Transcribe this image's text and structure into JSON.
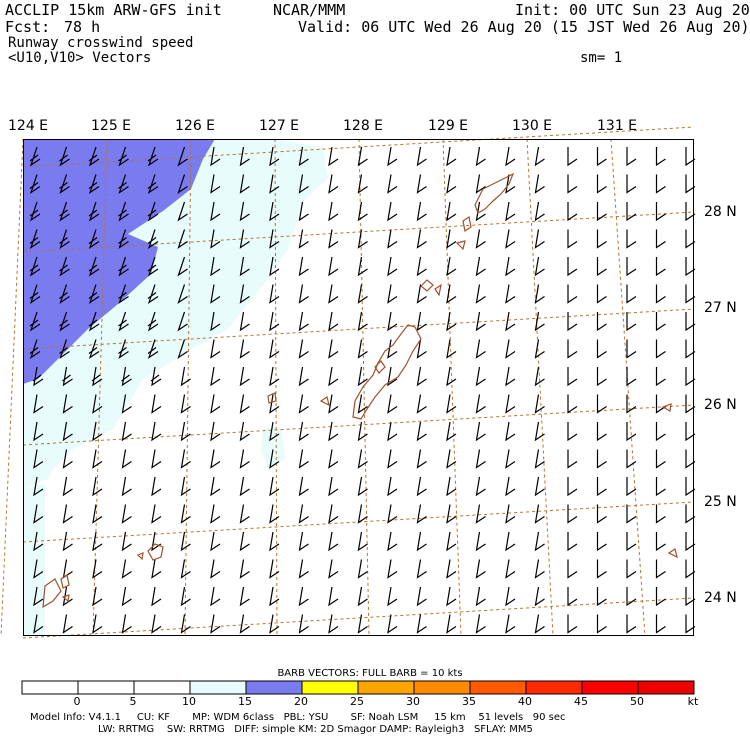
{
  "header": {
    "model": "ACCLIP 15km ARW-GFS init",
    "org": "NCAR/MMM",
    "init": "Init: 00 UTC Sun 23 Aug 20",
    "fcst_label": "Fcst:",
    "fcst_value": "78 h",
    "valid": "Valid: 06 UTC Wed 26 Aug 20 (15 JST Wed 26 Aug 20)",
    "field_name": "Runway crosswind speed",
    "vectors": "<U10,V10> Vectors",
    "smoothing": "sm= 1"
  },
  "map": {
    "longitude_labels": [
      "124 E",
      "125 E",
      "126 E",
      "127 E",
      "128 E",
      "129 E",
      "130 E",
      "131 E"
    ],
    "latitude_labels": [
      "28 N",
      "27 N",
      "26 N",
      "25 N",
      "24 N"
    ],
    "colors": {
      "land": "#a0522d",
      "grid": "#b8732e",
      "band_10_15": "#e8fcfc",
      "band_15_20": "#7b7bf0"
    }
  },
  "colorbar": {
    "title": "BARB VECTORS:  FULL BARB = 10 kts",
    "ticks": [
      "0",
      "5",
      "10",
      "15",
      "20",
      "25",
      "30",
      "35",
      "40",
      "45",
      "50"
    ],
    "unit": "kt",
    "colors": [
      "#ffffff",
      "#ffffff",
      "#ffffff",
      "#e8fcfc",
      "#7b7bf0",
      "#ffff00",
      "#ffa500",
      "#ff8c00",
      "#ff5a00",
      "#ff2a00",
      "#ff0000",
      "#ee0000"
    ]
  },
  "footer": {
    "line1": "Model Info: V4.1.1     CU: KF       MP: WDM 6class   PBL: YSU       SF: Noah LSM     15 km    51 levels   90 sec",
    "line2": "LW: RRTMG    SW: RRTMG   DIFF: simple KM: 2D Smagor DAMP: Rayleigh3   SFLAY: MM5"
  }
}
